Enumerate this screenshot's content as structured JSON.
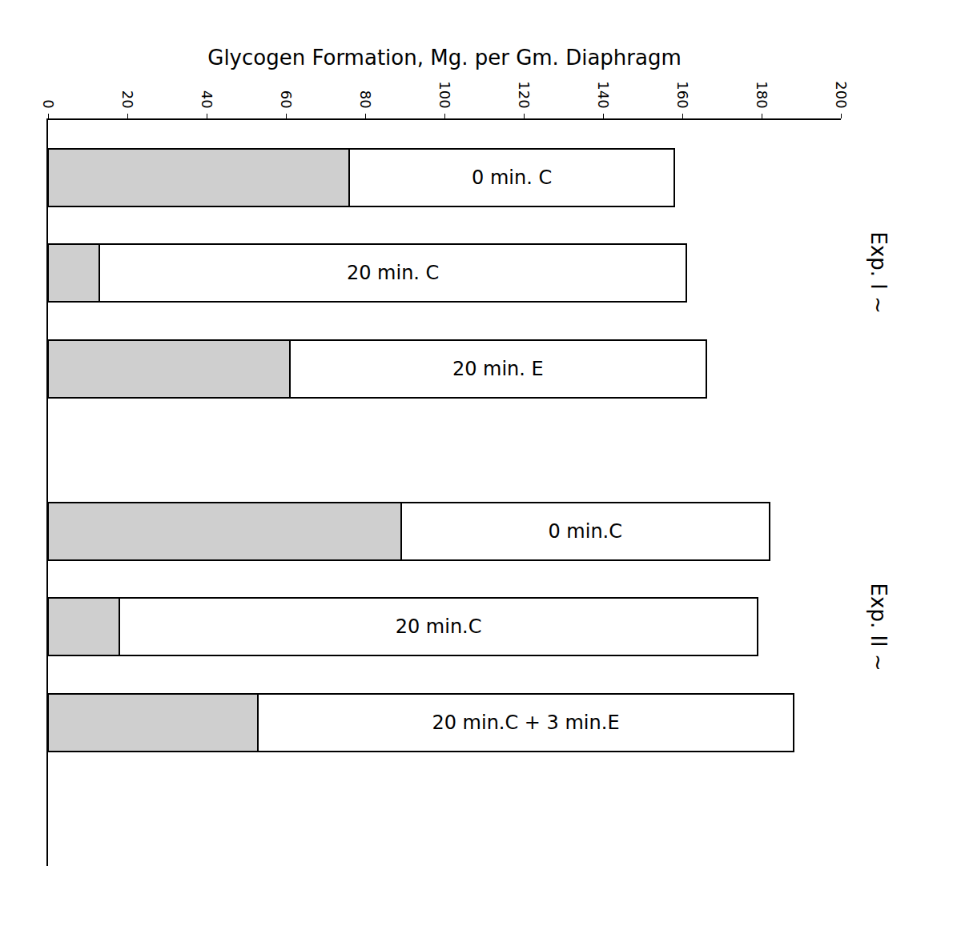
{
  "chart_data": {
    "type": "bar",
    "orientation": "horizontal",
    "stacked": true,
    "title": "Glycogen Formation, Mg. per Gm. Diaphragm",
    "groups": [
      {
        "label": "Exp. I ~",
        "categories": [
          "0 min. C",
          "20 min. C",
          "20 min. E"
        ]
      },
      {
        "label": "Exp. II ~",
        "categories": [
          "0 min.C",
          "20 min.C",
          "20 min.C + 3 min.E"
        ]
      }
    ],
    "series": [
      {
        "color": "#cfcfcf",
        "values": [
          76,
          13,
          61,
          89,
          18,
          53
        ]
      },
      {
        "color": "#ffffff",
        "values": [
          82,
          148,
          105,
          93,
          161,
          135
        ]
      }
    ],
    "xlim": [
      0,
      200
    ],
    "xticks": [
      0,
      20,
      40,
      60,
      80,
      100,
      120,
      140,
      160,
      180,
      200
    ],
    "grid": false,
    "tick_labels": "x"
  }
}
